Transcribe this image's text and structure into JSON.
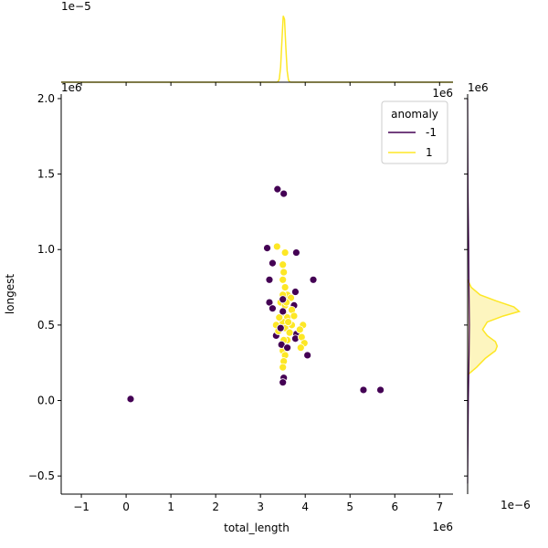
{
  "chart_data": {
    "type": "scatter",
    "xlabel": "total_length",
    "ylabel": "longest",
    "x_offset_text": "1e6",
    "y_offset_text": "1e6",
    "top_offset_text": "1e−5",
    "top_right_offset_text": "1e6",
    "right_offset_text": "1e6",
    "bottom_right_offset_text": "1e−6",
    "xlim": [
      -1.45,
      7.3
    ],
    "ylim": [
      -0.62,
      2.03
    ],
    "xticks": [
      {
        "v": -1,
        "label": "−1"
      },
      {
        "v": 0,
        "label": "0"
      },
      {
        "v": 1,
        "label": "1"
      },
      {
        "v": 2,
        "label": "2"
      },
      {
        "v": 3,
        "label": "3"
      },
      {
        "v": 4,
        "label": "4"
      },
      {
        "v": 5,
        "label": "5"
      },
      {
        "v": 6,
        "label": "6"
      },
      {
        "v": 7,
        "label": "7"
      }
    ],
    "yticks": [
      {
        "v": -0.5,
        "label": "−0.5"
      },
      {
        "v": 0,
        "label": "0.0"
      },
      {
        "v": 0.5,
        "label": "0.5"
      },
      {
        "v": 1.0,
        "label": "1.0"
      },
      {
        "v": 1.5,
        "label": "1.5"
      },
      {
        "v": 2.0,
        "label": "2.0"
      }
    ],
    "legend": {
      "title": "anomaly",
      "placement": "upper right",
      "entries": [
        {
          "label": "-1",
          "color": "#440154"
        },
        {
          "label": "1",
          "color": "#fde725"
        }
      ]
    },
    "series": [
      {
        "name": "-1",
        "color": "#440154",
        "points": [
          [
            0.1,
            0.01
          ],
          [
            3.38,
            1.4
          ],
          [
            3.52,
            1.37
          ],
          [
            3.15,
            1.01
          ],
          [
            3.8,
            0.98
          ],
          [
            3.27,
            0.91
          ],
          [
            3.2,
            0.8
          ],
          [
            4.18,
            0.8
          ],
          [
            3.78,
            0.72
          ],
          [
            3.2,
            0.65
          ],
          [
            3.27,
            0.61
          ],
          [
            3.5,
            0.67
          ],
          [
            3.5,
            0.59
          ],
          [
            3.75,
            0.63
          ],
          [
            3.45,
            0.48
          ],
          [
            3.8,
            0.44
          ],
          [
            3.35,
            0.43
          ],
          [
            3.78,
            0.41
          ],
          [
            3.47,
            0.37
          ],
          [
            3.6,
            0.35
          ],
          [
            4.05,
            0.3
          ],
          [
            3.52,
            0.15
          ],
          [
            3.5,
            0.12
          ],
          [
            5.3,
            0.07
          ],
          [
            5.68,
            0.07
          ]
        ]
      },
      {
        "name": "1",
        "color": "#fde725",
        "points": [
          [
            3.37,
            1.02
          ],
          [
            3.55,
            0.98
          ],
          [
            3.5,
            0.9
          ],
          [
            3.52,
            0.85
          ],
          [
            3.5,
            0.8
          ],
          [
            3.55,
            0.75
          ],
          [
            3.6,
            0.7
          ],
          [
            3.68,
            0.68
          ],
          [
            3.45,
            0.65
          ],
          [
            3.55,
            0.63
          ],
          [
            3.7,
            0.6
          ],
          [
            3.52,
            0.58
          ],
          [
            3.6,
            0.55
          ],
          [
            3.5,
            0.52
          ],
          [
            3.35,
            0.5
          ],
          [
            3.4,
            0.46
          ],
          [
            3.55,
            0.48
          ],
          [
            3.7,
            0.5
          ],
          [
            3.95,
            0.5
          ],
          [
            3.88,
            0.47
          ],
          [
            3.92,
            0.42
          ],
          [
            3.98,
            0.38
          ],
          [
            3.9,
            0.35
          ],
          [
            3.5,
            0.33
          ],
          [
            3.55,
            0.3
          ],
          [
            3.52,
            0.26
          ],
          [
            3.5,
            0.22
          ],
          [
            3.6,
            0.4
          ],
          [
            3.65,
            0.45
          ],
          [
            3.42,
            0.55
          ],
          [
            3.58,
            0.65
          ],
          [
            3.62,
            0.52
          ],
          [
            3.5,
            0.7
          ],
          [
            3.75,
            0.56
          ],
          [
            3.52,
            0.4
          ]
        ]
      }
    ],
    "marginal_x": {
      "orientation": "top",
      "series": [
        {
          "name": "1",
          "color": "#fde725",
          "peak_x": 3.52,
          "peak_density": 7.1,
          "width": 0.04
        }
      ],
      "ylim": [
        0,
        7.5
      ]
    },
    "marginal_y": {
      "orientation": "right",
      "series": [
        {
          "name": "1",
          "color": "#fde725",
          "fill": "#fdf5bf",
          "curve": [
            [
              0.17,
              0.0
            ],
            [
              0.22,
              0.25
            ],
            [
              0.28,
              0.5
            ],
            [
              0.33,
              0.78
            ],
            [
              0.36,
              0.83
            ],
            [
              0.39,
              0.78
            ],
            [
              0.43,
              0.55
            ],
            [
              0.47,
              0.42
            ],
            [
              0.52,
              0.55
            ],
            [
              0.56,
              1.0
            ],
            [
              0.59,
              1.45
            ],
            [
              0.62,
              1.3
            ],
            [
              0.66,
              0.8
            ],
            [
              0.7,
              0.35
            ],
            [
              0.75,
              0.1
            ],
            [
              0.8,
              0.0
            ]
          ]
        },
        {
          "name": "-1",
          "color": "#440154",
          "fill": "none",
          "curve": [
            [
              -0.55,
              0.0
            ],
            [
              0.0,
              0.02
            ],
            [
              0.3,
              0.04
            ],
            [
              0.5,
              0.05
            ],
            [
              0.7,
              0.04
            ],
            [
              1.0,
              0.03
            ],
            [
              1.4,
              0.01
            ],
            [
              2.0,
              0.0
            ]
          ]
        }
      ],
      "xlim": [
        0,
        2.0
      ]
    }
  }
}
